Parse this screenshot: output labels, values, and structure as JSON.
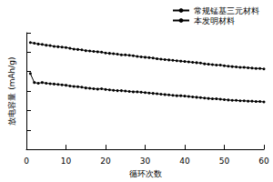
{
  "chart_data": {
    "type": "line",
    "x_label": "循环次数",
    "y_label": "放电容量 (mAh/g)",
    "x": [
      1,
      2,
      3,
      4,
      5,
      6,
      7,
      8,
      9,
      10,
      11,
      12,
      13,
      14,
      15,
      16,
      17,
      18,
      19,
      20,
      21,
      22,
      23,
      24,
      25,
      26,
      27,
      28,
      29,
      30,
      31,
      32,
      33,
      34,
      35,
      36,
      37,
      38,
      39,
      40,
      41,
      42,
      43,
      44,
      45,
      46,
      47,
      48,
      49,
      50,
      51,
      52,
      53,
      54,
      55,
      56,
      57,
      58,
      59,
      60
    ],
    "series": [
      {
        "name": "常规锰基三元材料",
        "color": "#000000",
        "marker": "circle",
        "values": [
          195,
          172,
          170,
          172,
          170,
          169,
          168,
          167,
          166,
          165,
          163,
          162,
          161,
          160,
          158,
          157,
          156,
          155,
          156,
          154,
          153,
          152,
          151,
          151,
          150,
          149,
          148,
          148,
          147,
          146,
          145,
          144,
          143,
          142,
          141,
          140,
          139,
          138,
          138,
          137,
          136,
          135,
          134,
          133,
          132,
          131,
          130,
          130,
          129,
          128,
          127,
          126,
          126,
          125,
          125,
          124,
          124,
          123,
          123,
          122
        ]
      },
      {
        "name": "本发明材料",
        "color": "#000000",
        "marker": "circle",
        "values": [
          275,
          273,
          271,
          270,
          268,
          267,
          265,
          264,
          263,
          262,
          260,
          258,
          257,
          256,
          254,
          253,
          252,
          251,
          250,
          248,
          247,
          246,
          245,
          243,
          243,
          242,
          241,
          239,
          238,
          237,
          236,
          235,
          233,
          232,
          231,
          230,
          229,
          228,
          227,
          226,
          225,
          224,
          223,
          222,
          220,
          219,
          218,
          217,
          217,
          215,
          214,
          213,
          212,
          211,
          211,
          210,
          209,
          208,
          208,
          207
        ]
      }
    ],
    "xlim": [
      0,
      60
    ],
    "xticks": [
      0,
      10,
      20,
      30,
      40,
      50,
      60
    ],
    "ylim": [
      0,
      300
    ],
    "yticks": [
      0,
      50,
      100,
      150,
      200,
      250,
      300
    ],
    "tick_labels": "x",
    "grid": false,
    "legend": "upper right"
  }
}
